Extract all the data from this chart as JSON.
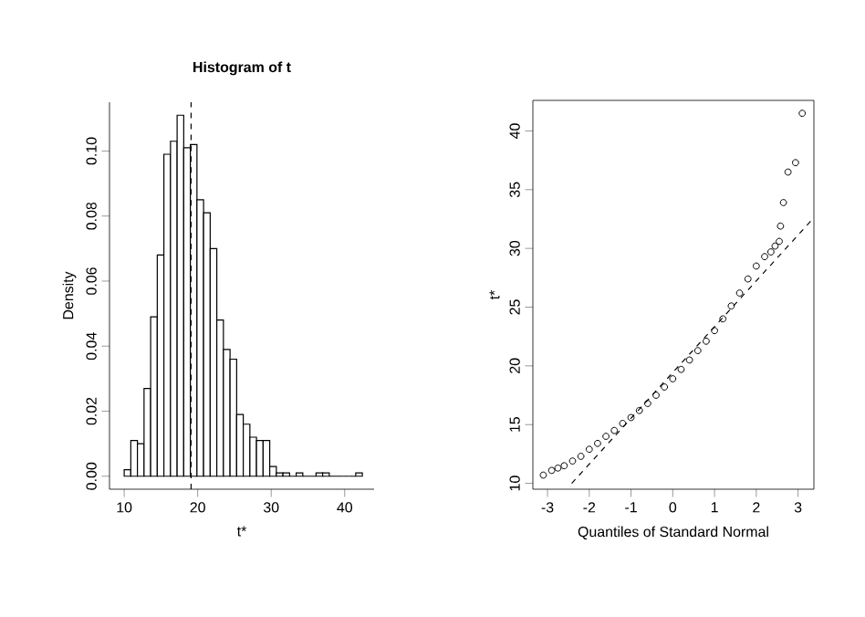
{
  "chart_data": [
    {
      "type": "histogram",
      "title": "Histogram of t",
      "xlabel": "t*",
      "ylabel": "Density",
      "bins": [
        10,
        10.9,
        11.8,
        12.7,
        13.6,
        14.5,
        15.4,
        16.3,
        17.2,
        18.1,
        19,
        19.9,
        20.8,
        21.7,
        22.6,
        23.5,
        24.4,
        25.3,
        26.2,
        27.1,
        28,
        28.9,
        29.8,
        30.7,
        31.6,
        32.5,
        33.4,
        34.3,
        35.2,
        36.1,
        37,
        37.9,
        38.8,
        39.7,
        40.6,
        41.5,
        42.4
      ],
      "values": [
        0.002,
        0.011,
        0.01,
        0.027,
        0.049,
        0.068,
        0.099,
        0.103,
        0.111,
        0.101,
        0.102,
        0.085,
        0.081,
        0.07,
        0.048,
        0.039,
        0.036,
        0.019,
        0.016,
        0.012,
        0.011,
        0.011,
        0.003,
        0.001,
        0.001,
        0,
        0.001,
        0,
        0,
        0.001,
        0.001,
        0,
        0,
        0,
        0,
        0.001
      ],
      "xlim": [
        8,
        44
      ],
      "ylim": [
        -0.004,
        0.115
      ],
      "xticks": [
        10,
        20,
        30,
        40
      ],
      "yticks": [
        {
          "value": 0,
          "label": "0.00"
        },
        {
          "value": 0.02,
          "label": "0.02"
        },
        {
          "value": 0.04,
          "label": "0.04"
        },
        {
          "value": 0.06,
          "label": "0.06"
        },
        {
          "value": 0.08,
          "label": "0.08"
        },
        {
          "value": 0.1,
          "label": "0.10"
        }
      ],
      "ref_lines": [
        {
          "axis": "x",
          "value": 19.1,
          "line_style": "dashed",
          "color": "#000000"
        }
      ],
      "grid": false
    },
    {
      "type": "scatter",
      "xlabel": "Quantiles of Standard Normal",
      "ylabel": "t*",
      "series": [
        {
          "marker": "circle",
          "color": "#000000",
          "x": [
            -3.1,
            -2.9,
            -2.75,
            -2.6,
            -2.4,
            -2.2,
            -2.0,
            -1.8,
            -1.6,
            -1.4,
            -1.2,
            -1.0,
            -0.8,
            -0.6,
            -0.4,
            -0.2,
            0,
            0.2,
            0.4,
            0.6,
            0.8,
            1.0,
            1.2,
            1.4,
            1.6,
            1.8,
            2.0,
            2.2,
            2.35,
            2.45,
            2.55,
            2.58,
            2.65,
            2.76,
            2.94,
            3.1
          ],
          "values": [
            10.7,
            11.1,
            11.3,
            11.5,
            11.9,
            12.3,
            12.9,
            13.4,
            14.0,
            14.5,
            15.1,
            15.6,
            16.2,
            16.8,
            17.5,
            18.2,
            18.9,
            19.7,
            20.5,
            21.3,
            22.1,
            23.0,
            24.0,
            25.1,
            26.2,
            27.4,
            28.5,
            29.3,
            29.7,
            30.2,
            30.6,
            31.9,
            33.9,
            36.5,
            37.3,
            41.5
          ]
        },
        {
          "type": "line",
          "line_style": "dashed",
          "color": "#000000",
          "x": [
            -2.42,
            3.35
          ],
          "values": [
            10,
            32.5
          ]
        }
      ],
      "xlim": [
        -3.35,
        3.38
      ],
      "ylim": [
        9.5,
        42.6
      ],
      "xticks": [
        -3,
        -2,
        -1,
        0,
        1,
        2,
        3
      ],
      "yticks": [
        10,
        15,
        20,
        25,
        30,
        35,
        40
      ],
      "grid": false
    }
  ]
}
